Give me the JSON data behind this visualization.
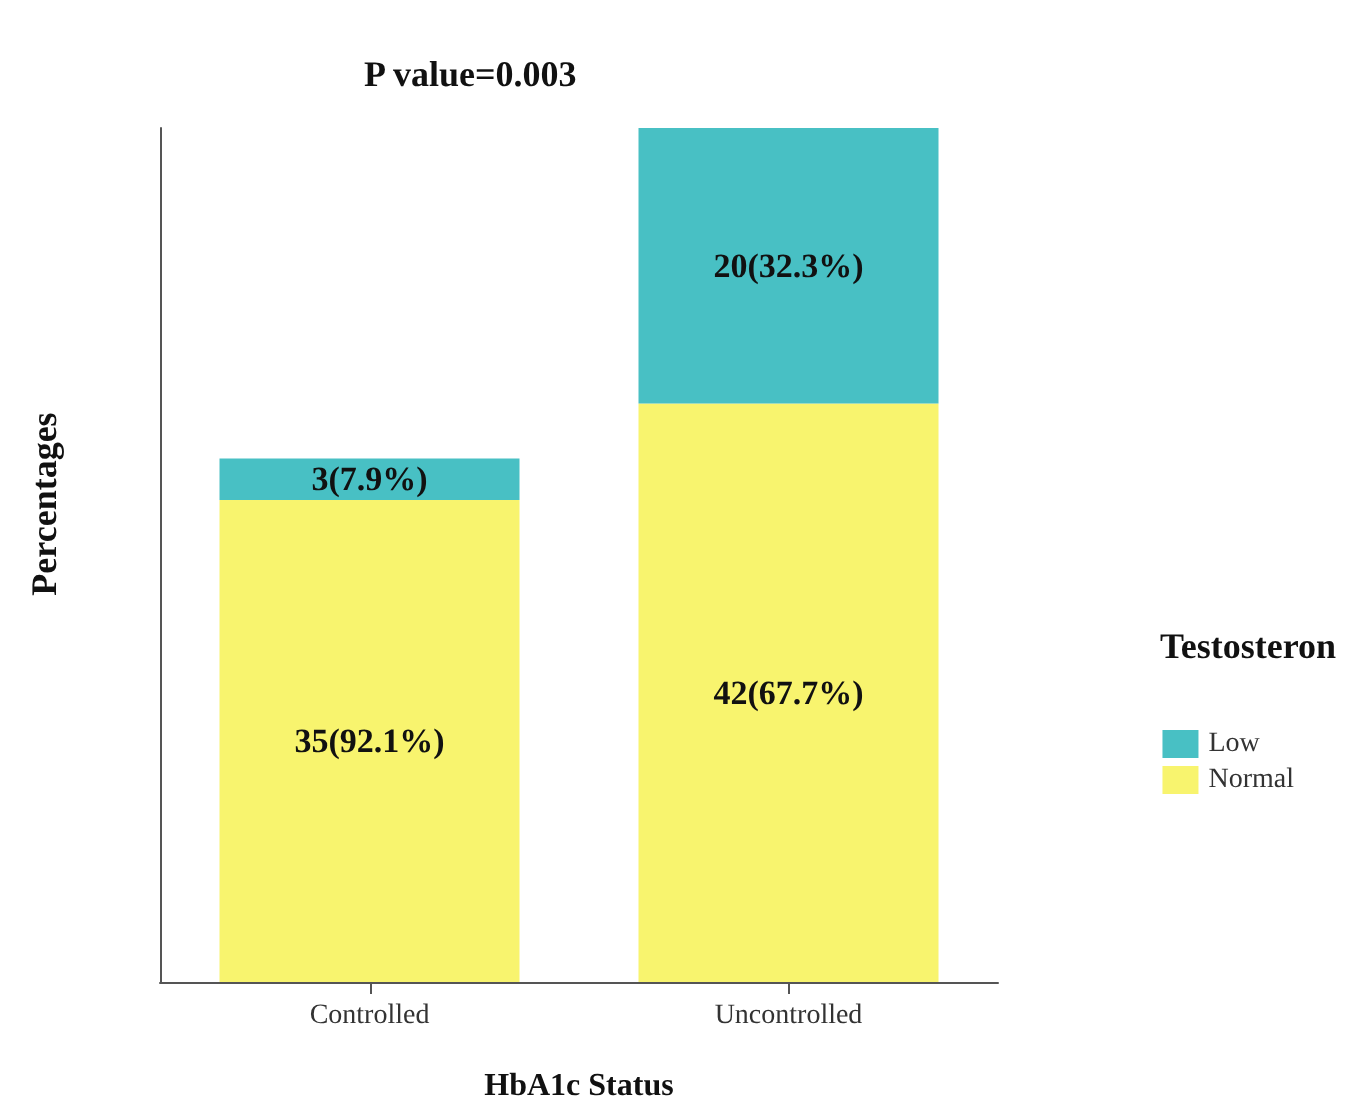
{
  "chart_data": {
    "type": "bar",
    "stacked": true,
    "tick_labels": "x",
    "annotations": [
      "P value=0.003"
    ],
    "xlabel": "HbA1c Status",
    "ylabel": "Percentages",
    "legend_title": "Testosteron",
    "categories": [
      "Controlled",
      "Uncontrolled"
    ],
    "series": [
      {
        "name": "Normal",
        "color": "#f8f46e",
        "values": [
          35,
          42
        ],
        "value_labels": [
          "35(92.1%)",
          "42(67.7%)"
        ]
      },
      {
        "name": "Low",
        "color": "#48c0c4",
        "values": [
          3,
          20
        ],
        "value_labels": [
          "3(7.9%)",
          "20(32.3%)"
        ]
      }
    ],
    "legend": "right",
    "grid": false
  }
}
